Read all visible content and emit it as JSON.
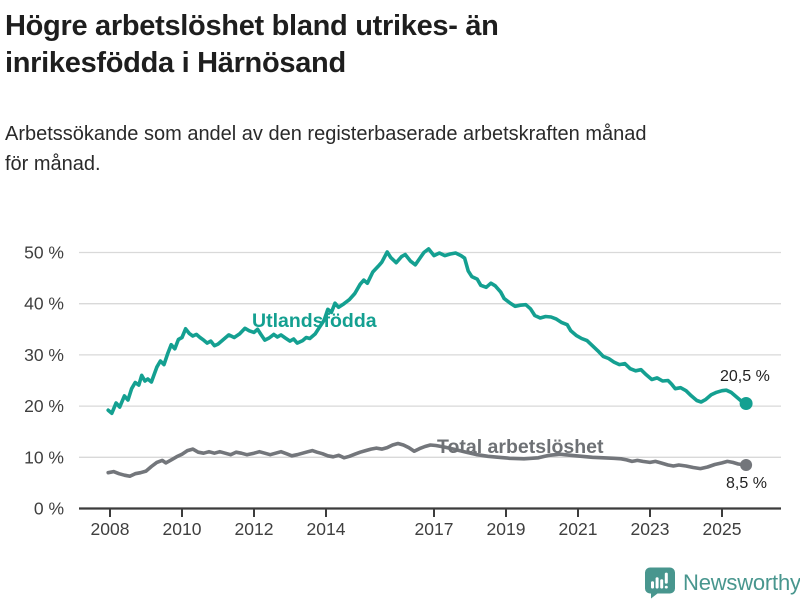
{
  "header": {
    "title_line1": "Högre arbetslöshet bland utrikes- än",
    "title_line2": "inrikesfödda i Härnösand",
    "subtitle_line1": "Arbetssökande som andel av den registerbaserade arbetskraften månad",
    "subtitle_line2": "för månad."
  },
  "footer": {
    "brand": "Newsworthy",
    "brand_color": "#48968e"
  },
  "colors": {
    "foreign_line": "#14a091",
    "total_line": "#73767b",
    "grid": "#d9d9d9",
    "axis": "#3c3c3c",
    "tick_text": "#3f3f3f",
    "value_label_text": "#222222"
  },
  "chart_data": {
    "type": "line",
    "title": "Högre arbetslöshet bland utrikes- än inrikesfödda i Härnösand",
    "subtitle": "Arbetssökande som andel av den registerbaserade arbetskraften månad för månad.",
    "xlabel": "",
    "ylabel": "",
    "grid": true,
    "legend_position": "inline-series-labels",
    "x_axis": {
      "range": [
        2007.9,
        2026.6
      ],
      "ticks": [
        {
          "year": 2008,
          "label": "2008"
        },
        {
          "year": 2010,
          "label": "2010"
        },
        {
          "year": 2012,
          "label": "2012"
        },
        {
          "year": 2014,
          "label": "2014"
        },
        {
          "year": 2017,
          "label": "2017"
        },
        {
          "year": 2019,
          "label": "2019"
        },
        {
          "year": 2021,
          "label": "2021"
        },
        {
          "year": 2023,
          "label": "2023"
        },
        {
          "year": 2025,
          "label": "2025"
        }
      ]
    },
    "y_axis": {
      "range": [
        0,
        52.5
      ],
      "unit": "%",
      "ticks": [
        {
          "value": 0,
          "label": "0 %"
        },
        {
          "value": 10,
          "label": "10 %"
        },
        {
          "value": 20,
          "label": "20 %"
        },
        {
          "value": 30,
          "label": "30 %"
        },
        {
          "value": 40,
          "label": "40 %"
        },
        {
          "value": 50,
          "label": "50 %"
        }
      ]
    },
    "series": [
      {
        "name": "Utlandsfödda",
        "color": "#14a091",
        "end_label": "20,5 %",
        "end_value": 20.5,
        "points": [
          [
            2007.95,
            19.2
          ],
          [
            2008.05,
            18.6
          ],
          [
            2008.17,
            20.6
          ],
          [
            2008.27,
            19.8
          ],
          [
            2008.4,
            22.0
          ],
          [
            2008.5,
            21.2
          ],
          [
            2008.6,
            23.4
          ],
          [
            2008.7,
            24.6
          ],
          [
            2008.8,
            24.1
          ],
          [
            2008.88,
            26.0
          ],
          [
            2008.97,
            24.9
          ],
          [
            2009.05,
            25.3
          ],
          [
            2009.15,
            24.7
          ],
          [
            2009.3,
            27.6
          ],
          [
            2009.4,
            28.8
          ],
          [
            2009.5,
            28.1
          ],
          [
            2009.6,
            30.2
          ],
          [
            2009.7,
            32.0
          ],
          [
            2009.8,
            31.2
          ],
          [
            2009.9,
            33.0
          ],
          [
            2010.0,
            33.4
          ],
          [
            2010.1,
            35.1
          ],
          [
            2010.2,
            34.2
          ],
          [
            2010.3,
            33.7
          ],
          [
            2010.4,
            34.0
          ],
          [
            2010.5,
            33.4
          ],
          [
            2010.6,
            32.9
          ],
          [
            2010.7,
            32.3
          ],
          [
            2010.8,
            32.7
          ],
          [
            2010.9,
            31.8
          ],
          [
            2011.0,
            32.1
          ],
          [
            2011.15,
            33.0
          ],
          [
            2011.3,
            33.9
          ],
          [
            2011.45,
            33.4
          ],
          [
            2011.6,
            34.1
          ],
          [
            2011.75,
            35.2
          ],
          [
            2011.87,
            34.7
          ],
          [
            2012.0,
            34.4
          ],
          [
            2012.1,
            35.0
          ],
          [
            2012.2,
            33.9
          ],
          [
            2012.3,
            32.9
          ],
          [
            2012.42,
            33.3
          ],
          [
            2012.55,
            34.0
          ],
          [
            2012.65,
            33.5
          ],
          [
            2012.75,
            33.9
          ],
          [
            2012.87,
            33.3
          ],
          [
            2013.0,
            32.7
          ],
          [
            2013.1,
            33.1
          ],
          [
            2013.2,
            32.3
          ],
          [
            2013.35,
            32.8
          ],
          [
            2013.45,
            33.4
          ],
          [
            2013.55,
            33.2
          ],
          [
            2013.7,
            34.1
          ],
          [
            2013.8,
            35.2
          ],
          [
            2013.95,
            36.8
          ],
          [
            2014.05,
            38.9
          ],
          [
            2014.15,
            38.3
          ],
          [
            2014.25,
            40.1
          ],
          [
            2014.35,
            39.3
          ],
          [
            2014.5,
            40.0
          ],
          [
            2014.65,
            40.8
          ],
          [
            2014.8,
            42.0
          ],
          [
            2014.95,
            43.8
          ],
          [
            2015.05,
            44.6
          ],
          [
            2015.15,
            44.0
          ],
          [
            2015.3,
            46.2
          ],
          [
            2015.45,
            47.3
          ],
          [
            2015.55,
            48.1
          ],
          [
            2015.7,
            50.1
          ],
          [
            2015.8,
            49.0
          ],
          [
            2015.95,
            48.0
          ],
          [
            2016.1,
            49.2
          ],
          [
            2016.2,
            49.6
          ],
          [
            2016.35,
            48.3
          ],
          [
            2016.48,
            47.6
          ],
          [
            2016.6,
            48.8
          ],
          [
            2016.72,
            50.0
          ],
          [
            2016.85,
            50.7
          ],
          [
            2017.0,
            49.4
          ],
          [
            2017.15,
            49.9
          ],
          [
            2017.3,
            49.4
          ],
          [
            2017.45,
            49.7
          ],
          [
            2017.6,
            49.9
          ],
          [
            2017.75,
            49.4
          ],
          [
            2017.85,
            48.9
          ],
          [
            2017.95,
            46.4
          ],
          [
            2018.05,
            45.3
          ],
          [
            2018.2,
            44.8
          ],
          [
            2018.3,
            43.6
          ],
          [
            2018.45,
            43.2
          ],
          [
            2018.58,
            44.0
          ],
          [
            2018.7,
            43.5
          ],
          [
            2018.85,
            42.3
          ],
          [
            2018.95,
            41.0
          ],
          [
            2019.1,
            40.2
          ],
          [
            2019.25,
            39.5
          ],
          [
            2019.4,
            39.7
          ],
          [
            2019.55,
            39.8
          ],
          [
            2019.68,
            39.0
          ],
          [
            2019.8,
            37.7
          ],
          [
            2019.95,
            37.2
          ],
          [
            2020.1,
            37.5
          ],
          [
            2020.25,
            37.4
          ],
          [
            2020.4,
            37.0
          ],
          [
            2020.55,
            36.3
          ],
          [
            2020.7,
            35.9
          ],
          [
            2020.8,
            34.7
          ],
          [
            2020.95,
            33.8
          ],
          [
            2021.1,
            33.2
          ],
          [
            2021.25,
            32.8
          ],
          [
            2021.4,
            31.8
          ],
          [
            2021.55,
            30.8
          ],
          [
            2021.7,
            29.7
          ],
          [
            2021.85,
            29.3
          ],
          [
            2022.0,
            28.6
          ],
          [
            2022.15,
            28.1
          ],
          [
            2022.3,
            28.3
          ],
          [
            2022.45,
            27.3
          ],
          [
            2022.6,
            26.9
          ],
          [
            2022.75,
            27.1
          ],
          [
            2022.9,
            26.1
          ],
          [
            2023.05,
            25.2
          ],
          [
            2023.2,
            25.5
          ],
          [
            2023.35,
            24.9
          ],
          [
            2023.5,
            25.0
          ],
          [
            2023.6,
            24.3
          ],
          [
            2023.7,
            23.4
          ],
          [
            2023.85,
            23.6
          ],
          [
            2024.0,
            23.0
          ],
          [
            2024.15,
            22.0
          ],
          [
            2024.3,
            21.1
          ],
          [
            2024.42,
            20.8
          ],
          [
            2024.55,
            21.3
          ],
          [
            2024.7,
            22.2
          ],
          [
            2024.85,
            22.7
          ],
          [
            2025.0,
            23.0
          ],
          [
            2025.12,
            23.1
          ],
          [
            2025.25,
            22.7
          ],
          [
            2025.4,
            21.8
          ],
          [
            2025.55,
            20.9
          ],
          [
            2025.67,
            20.5
          ]
        ]
      },
      {
        "name": "Total arbetslöshet",
        "color": "#73767b",
        "end_label": "8,5 %",
        "end_value": 8.5,
        "points": [
          [
            2007.95,
            7.0
          ],
          [
            2008.1,
            7.2
          ],
          [
            2008.25,
            6.8
          ],
          [
            2008.4,
            6.5
          ],
          [
            2008.55,
            6.3
          ],
          [
            2008.7,
            6.8
          ],
          [
            2008.85,
            7.0
          ],
          [
            2009.0,
            7.3
          ],
          [
            2009.15,
            8.2
          ],
          [
            2009.3,
            9.0
          ],
          [
            2009.45,
            9.4
          ],
          [
            2009.55,
            8.9
          ],
          [
            2009.7,
            9.5
          ],
          [
            2009.85,
            10.1
          ],
          [
            2010.0,
            10.6
          ],
          [
            2010.15,
            11.3
          ],
          [
            2010.3,
            11.6
          ],
          [
            2010.45,
            11.0
          ],
          [
            2010.6,
            10.8
          ],
          [
            2010.75,
            11.1
          ],
          [
            2010.9,
            10.8
          ],
          [
            2011.05,
            11.1
          ],
          [
            2011.2,
            10.8
          ],
          [
            2011.35,
            10.5
          ],
          [
            2011.5,
            11.0
          ],
          [
            2011.65,
            10.8
          ],
          [
            2011.8,
            10.5
          ],
          [
            2012.0,
            10.8
          ],
          [
            2012.15,
            11.1
          ],
          [
            2012.3,
            10.8
          ],
          [
            2012.45,
            10.5
          ],
          [
            2012.6,
            10.8
          ],
          [
            2012.75,
            11.1
          ],
          [
            2012.9,
            10.7
          ],
          [
            2013.05,
            10.3
          ],
          [
            2013.2,
            10.5
          ],
          [
            2013.35,
            10.8
          ],
          [
            2013.5,
            11.1
          ],
          [
            2013.62,
            11.3
          ],
          [
            2013.75,
            11.0
          ],
          [
            2013.9,
            10.7
          ],
          [
            2014.05,
            10.3
          ],
          [
            2014.2,
            10.1
          ],
          [
            2014.35,
            10.4
          ],
          [
            2014.5,
            9.9
          ],
          [
            2014.65,
            10.2
          ],
          [
            2014.8,
            10.6
          ],
          [
            2014.95,
            11.0
          ],
          [
            2015.1,
            11.3
          ],
          [
            2015.25,
            11.6
          ],
          [
            2015.4,
            11.8
          ],
          [
            2015.55,
            11.6
          ],
          [
            2015.7,
            11.9
          ],
          [
            2015.85,
            12.4
          ],
          [
            2016.0,
            12.7
          ],
          [
            2016.15,
            12.4
          ],
          [
            2016.3,
            11.9
          ],
          [
            2016.45,
            11.2
          ],
          [
            2016.6,
            11.7
          ],
          [
            2016.75,
            12.1
          ],
          [
            2016.9,
            12.4
          ],
          [
            2017.05,
            12.3
          ],
          [
            2017.3,
            12.0
          ],
          [
            2017.6,
            11.5
          ],
          [
            2017.9,
            11.0
          ],
          [
            2018.2,
            10.5
          ],
          [
            2018.5,
            10.2
          ],
          [
            2018.8,
            10.0
          ],
          [
            2019.1,
            9.8
          ],
          [
            2019.5,
            9.7
          ],
          [
            2019.9,
            9.9
          ],
          [
            2020.2,
            10.4
          ],
          [
            2020.5,
            10.6
          ],
          [
            2020.8,
            10.4
          ],
          [
            2021.1,
            10.2
          ],
          [
            2021.4,
            10.0
          ],
          [
            2021.7,
            9.9
          ],
          [
            2022.0,
            9.8
          ],
          [
            2022.2,
            9.7
          ],
          [
            2022.35,
            9.5
          ],
          [
            2022.5,
            9.2
          ],
          [
            2022.65,
            9.4
          ],
          [
            2022.8,
            9.2
          ],
          [
            2023.0,
            9.0
          ],
          [
            2023.15,
            9.2
          ],
          [
            2023.3,
            8.9
          ],
          [
            2023.5,
            8.5
          ],
          [
            2023.65,
            8.3
          ],
          [
            2023.8,
            8.5
          ],
          [
            2024.0,
            8.3
          ],
          [
            2024.2,
            8.0
          ],
          [
            2024.4,
            7.8
          ],
          [
            2024.6,
            8.1
          ],
          [
            2024.8,
            8.6
          ],
          [
            2025.0,
            8.9
          ],
          [
            2025.15,
            9.2
          ],
          [
            2025.3,
            9.0
          ],
          [
            2025.45,
            8.7
          ],
          [
            2025.67,
            8.5
          ]
        ]
      }
    ]
  }
}
